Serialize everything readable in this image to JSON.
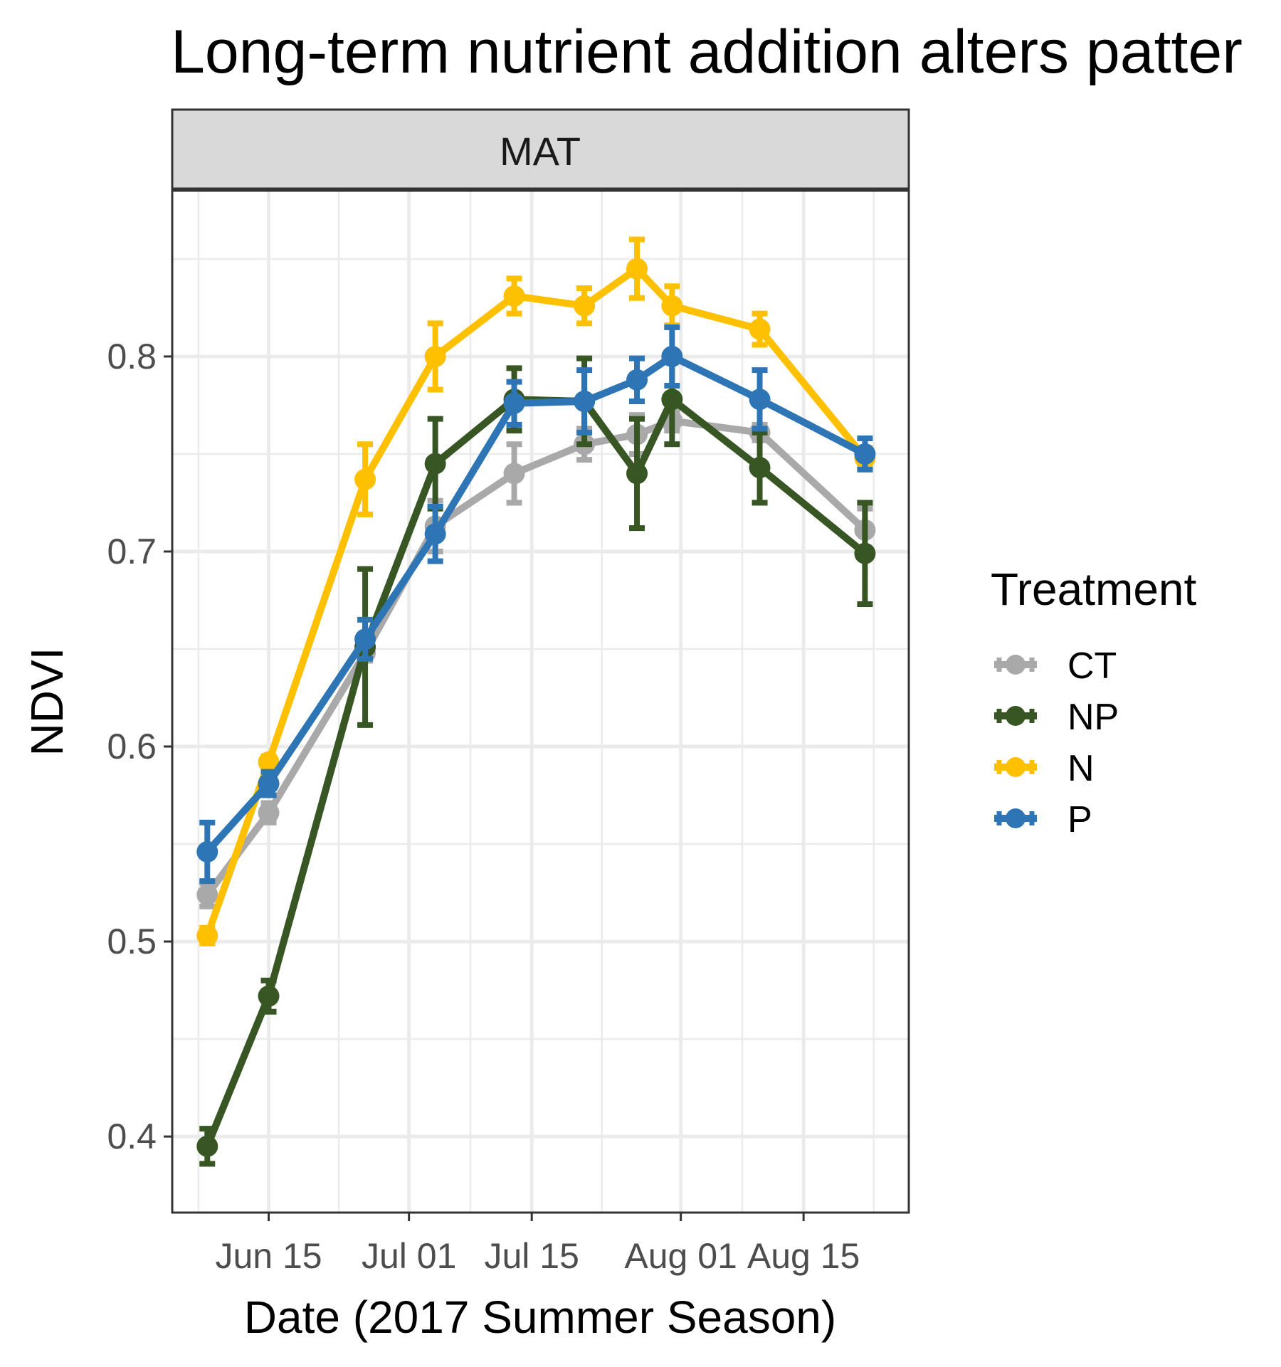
{
  "chart_data": {
    "type": "line",
    "title": "Long-term nutrient addition alters patter",
    "facet": "MAT",
    "xlabel": "Date (2017 Summer Season)",
    "ylabel": "NDVI",
    "x": [
      "2017-06-08",
      "2017-06-15",
      "2017-06-26",
      "2017-07-04",
      "2017-07-13",
      "2017-07-21",
      "2017-07-27",
      "2017-07-31",
      "2017-08-10",
      "2017-08-22"
    ],
    "x_tick_values": [
      "2017-06-15",
      "2017-07-01",
      "2017-07-15",
      "2017-08-01",
      "2017-08-15"
    ],
    "x_tick_labels": [
      "Jun 15",
      "Jul 01",
      "Jul 15",
      "Aug 01",
      "Aug 15"
    ],
    "xlim": [
      "2017-06-04",
      "2017-08-27"
    ],
    "y_ticks": [
      0.4,
      0.5,
      0.6,
      0.7,
      0.8
    ],
    "y_tick_labels": [
      "0.4",
      "0.5",
      "0.6",
      "0.7",
      "0.8"
    ],
    "ylim": [
      0.361,
      0.885
    ],
    "grid": true,
    "legend": {
      "title": "Treatment",
      "position": "right"
    },
    "series": [
      {
        "name": "CT",
        "color": "#a9a9a9",
        "values": [
          0.524,
          0.566,
          0.648,
          0.713,
          0.74,
          0.755,
          0.76,
          0.767,
          0.761,
          0.711
        ],
        "errors": [
          0.006,
          0.005,
          0.004,
          0.013,
          0.015,
          0.008,
          0.01,
          0.005,
          0.004,
          0.011
        ]
      },
      {
        "name": "NP",
        "color": "#375623",
        "values": [
          0.395,
          0.472,
          0.651,
          0.745,
          0.778,
          0.777,
          0.74,
          0.778,
          0.743,
          0.699
        ],
        "errors": [
          0.009,
          0.008,
          0.04,
          0.023,
          0.016,
          0.022,
          0.028,
          0.023,
          0.018,
          0.026
        ]
      },
      {
        "name": "N",
        "color": "#ffc000",
        "values": [
          0.503,
          0.592,
          0.737,
          0.8,
          0.831,
          0.826,
          0.845,
          0.826,
          0.814,
          0.748
        ],
        "errors": [
          0.004,
          0.003,
          0.018,
          0.017,
          0.009,
          0.009,
          0.015,
          0.01,
          0.008,
          0.005
        ]
      },
      {
        "name": "P",
        "color": "#2e75b6",
        "values": [
          0.546,
          0.581,
          0.655,
          0.709,
          0.776,
          0.777,
          0.788,
          0.8,
          0.778,
          0.75
        ],
        "errors": [
          0.015,
          0.006,
          0.01,
          0.014,
          0.011,
          0.016,
          0.011,
          0.015,
          0.015,
          0.008
        ]
      }
    ]
  }
}
